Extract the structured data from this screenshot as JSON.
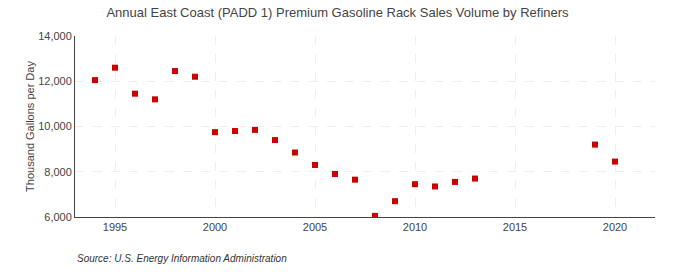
{
  "chart_data": {
    "type": "scatter",
    "title": "Annual East Coast (PADD 1) Premium Gasoline Rack Sales Volume by Refiners",
    "ylabel": "Thousand Gallons per Day",
    "annotations": [
      "Source: U.S. Energy Information Administration"
    ],
    "x": [
      1994,
      1995,
      1996,
      1997,
      1998,
      1999,
      2000,
      2001,
      2002,
      2003,
      2004,
      2005,
      2006,
      2007,
      2008,
      2009,
      2010,
      2011,
      2012,
      2013,
      2019,
      2020
    ],
    "values": [
      12050,
      12600,
      11450,
      11200,
      12450,
      12200,
      9750,
      9800,
      9850,
      9400,
      8850,
      8300,
      7900,
      7650,
      6050,
      6700,
      7450,
      7350,
      7550,
      7700,
      9200,
      8450
    ],
    "color": "#cc0000",
    "marker": "square",
    "xlim": [
      1993,
      2022
    ],
    "xticks": [
      1995,
      2000,
      2005,
      2010,
      2015,
      2020
    ],
    "ylim": [
      6000,
      14000
    ],
    "yticks": [
      {
        "value": 6000,
        "label": "6,000"
      },
      {
        "value": 8000,
        "label": "8,000"
      },
      {
        "value": 10000,
        "label": "10,000"
      },
      {
        "value": 12000,
        "label": "12,000"
      },
      {
        "value": 14000,
        "label": "14,000"
      }
    ],
    "grid": true
  }
}
